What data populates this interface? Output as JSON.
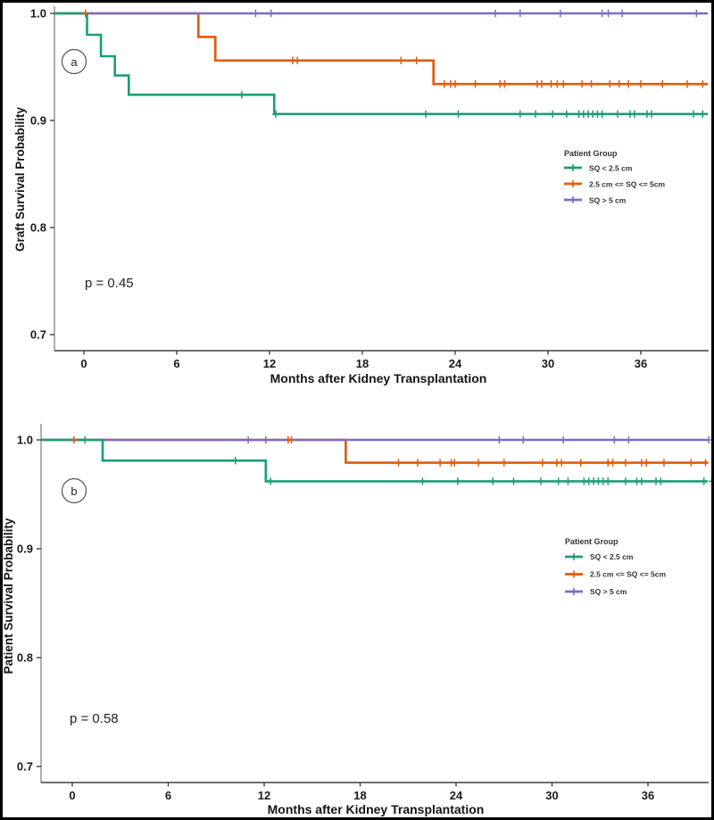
{
  "figure": {
    "border_color": "#000000",
    "background": "#FFFFFF"
  },
  "colors": {
    "x_axis": "#3F3F3F",
    "y_axis": "#8C8C8C",
    "tick": "#3F3F3F",
    "tick_label": "#1A1A1A",
    "green": "#1B9E77",
    "orange": "#E25A0C",
    "purple": "#7B6CC6"
  },
  "chart_data": [
    {
      "type": "line",
      "subtype": "kaplan_meier_step",
      "panel_label": "a",
      "xlabel": "Months after Kidney Transplantation",
      "ylabel": "Graft Survival Probability",
      "pvalue": "p = 0.45",
      "legend_title": "Patient Group",
      "legend_position": "right-middle",
      "grid": false,
      "xlim": [
        -1.9,
        40.4
      ],
      "ylim": [
        0.685,
        1.005
      ],
      "xticks": [
        0,
        6,
        12,
        18,
        24,
        30,
        36
      ],
      "yticks": [
        "1.0",
        "0.9",
        "0.8",
        "0.7"
      ],
      "series": [
        {
          "name": "SQ < 2.5 cm",
          "color": "#1B9E77",
          "points": [
            [
              0,
              1.0
            ],
            [
              0.2,
              0.98
            ],
            [
              1.1,
              0.96
            ],
            [
              2.0,
              0.942
            ],
            [
              2.9,
              0.924
            ],
            [
              12.3,
              0.906
            ]
          ],
          "censors": [
            [
              10.2,
              0.924
            ],
            [
              12.4,
              0.906
            ],
            [
              22.1,
              0.906
            ],
            [
              24.2,
              0.906
            ],
            [
              28.2,
              0.906
            ],
            [
              29.2,
              0.906
            ],
            [
              30.3,
              0.906
            ],
            [
              31.2,
              0.906
            ],
            [
              32.0,
              0.906
            ],
            [
              32.3,
              0.906
            ],
            [
              32.6,
              0.906
            ],
            [
              32.9,
              0.906
            ],
            [
              33.2,
              0.906
            ],
            [
              33.5,
              0.906
            ],
            [
              34.5,
              0.906
            ],
            [
              35.3,
              0.906
            ],
            [
              35.6,
              0.906
            ],
            [
              36.4,
              0.906
            ],
            [
              36.7,
              0.906
            ],
            [
              39.4,
              0.906
            ],
            [
              40.0,
              0.906
            ]
          ]
        },
        {
          "name": "2.5 cm <= SQ <= 5cm",
          "color": "#E25A0C",
          "points": [
            [
              0,
              1.0
            ],
            [
              7.4,
              0.978
            ],
            [
              8.5,
              0.956
            ],
            [
              22.6,
              0.934
            ]
          ],
          "censors": [
            [
              0.1,
              1.0
            ],
            [
              13.5,
              0.956
            ],
            [
              13.8,
              0.956
            ],
            [
              20.5,
              0.956
            ],
            [
              21.5,
              0.956
            ],
            [
              23.3,
              0.934
            ],
            [
              23.7,
              0.934
            ],
            [
              24.0,
              0.934
            ],
            [
              25.3,
              0.934
            ],
            [
              26.9,
              0.934
            ],
            [
              27.2,
              0.934
            ],
            [
              29.3,
              0.934
            ],
            [
              29.6,
              0.934
            ],
            [
              30.2,
              0.934
            ],
            [
              30.6,
              0.934
            ],
            [
              31.0,
              0.934
            ],
            [
              32.2,
              0.934
            ],
            [
              32.8,
              0.934
            ],
            [
              34.0,
              0.934
            ],
            [
              34.6,
              0.934
            ],
            [
              35.2,
              0.934
            ],
            [
              36.0,
              0.934
            ],
            [
              37.4,
              0.934
            ],
            [
              39.0,
              0.934
            ],
            [
              40.0,
              0.934
            ]
          ]
        },
        {
          "name": "SQ > 5 cm",
          "color": "#7B6CC6",
          "points": [
            [
              0,
              1.0
            ]
          ],
          "censors": [
            [
              11.1,
              1.0
            ],
            [
              12.1,
              1.0
            ],
            [
              26.6,
              1.0
            ],
            [
              28.2,
              1.0
            ],
            [
              30.8,
              1.0
            ],
            [
              33.5,
              1.0
            ],
            [
              33.9,
              1.0
            ],
            [
              34.8,
              1.0
            ],
            [
              39.6,
              1.0
            ]
          ]
        }
      ]
    },
    {
      "type": "line",
      "subtype": "kaplan_meier_step",
      "panel_label": "b",
      "xlabel": "Months after Kidney Transplantation",
      "ylabel": "Patient Survival Probability",
      "pvalue": "p = 0.58",
      "legend_title": "Patient Group",
      "legend_position": "right-middle",
      "grid": false,
      "xlim": [
        -1.9,
        39.8
      ],
      "ylim": [
        0.685,
        1.005
      ],
      "xticks": [
        0,
        6,
        12,
        18,
        24,
        30,
        36
      ],
      "yticks": [
        "1.0",
        "0.9",
        "0.8",
        "0.7"
      ],
      "series": [
        {
          "name": "SQ < 2.5 cm",
          "color": "#1B9E77",
          "points": [
            [
              0,
              1.0
            ],
            [
              1.9,
              0.981
            ],
            [
              12.1,
              0.962
            ]
          ],
          "censors": [
            [
              0.8,
              1.0
            ],
            [
              10.2,
              0.981
            ],
            [
              12.4,
              0.962
            ],
            [
              21.9,
              0.962
            ],
            [
              24.1,
              0.962
            ],
            [
              26.3,
              0.962
            ],
            [
              27.6,
              0.962
            ],
            [
              29.3,
              0.962
            ],
            [
              30.4,
              0.962
            ],
            [
              31.0,
              0.962
            ],
            [
              32.0,
              0.962
            ],
            [
              32.3,
              0.962
            ],
            [
              32.6,
              0.962
            ],
            [
              32.9,
              0.962
            ],
            [
              33.2,
              0.962
            ],
            [
              33.5,
              0.962
            ],
            [
              34.6,
              0.962
            ],
            [
              35.3,
              0.962
            ],
            [
              35.6,
              0.962
            ],
            [
              36.5,
              0.962
            ],
            [
              36.8,
              0.962
            ],
            [
              39.5,
              0.962
            ],
            [
              40.0,
              0.962
            ]
          ]
        },
        {
          "name": "2.5 cm <= SQ <= 5cm",
          "color": "#E25A0C",
          "points": [
            [
              0,
              1.0
            ],
            [
              17.1,
              0.979
            ]
          ],
          "censors": [
            [
              0.1,
              1.0
            ],
            [
              13.5,
              1.0
            ],
            [
              13.7,
              1.0
            ],
            [
              20.4,
              0.979
            ],
            [
              21.6,
              0.979
            ],
            [
              23.0,
              0.979
            ],
            [
              23.7,
              0.979
            ],
            [
              23.9,
              0.979
            ],
            [
              25.4,
              0.979
            ],
            [
              27.0,
              0.979
            ],
            [
              29.4,
              0.979
            ],
            [
              30.3,
              0.979
            ],
            [
              30.6,
              0.979
            ],
            [
              31.8,
              0.979
            ],
            [
              33.5,
              0.979
            ],
            [
              33.8,
              0.979
            ],
            [
              34.6,
              0.979
            ],
            [
              35.6,
              0.979
            ],
            [
              35.9,
              0.979
            ],
            [
              37.0,
              0.979
            ],
            [
              38.7,
              0.979
            ],
            [
              39.6,
              0.979
            ]
          ]
        },
        {
          "name": "SQ > 5 cm",
          "color": "#7B6CC6",
          "points": [
            [
              0,
              1.0
            ]
          ],
          "censors": [
            [
              11.0,
              1.0
            ],
            [
              12.1,
              1.0
            ],
            [
              26.7,
              1.0
            ],
            [
              28.2,
              1.0
            ],
            [
              30.7,
              1.0
            ],
            [
              33.9,
              1.0
            ],
            [
              34.8,
              1.0
            ],
            [
              39.8,
              1.0
            ]
          ]
        }
      ]
    }
  ]
}
